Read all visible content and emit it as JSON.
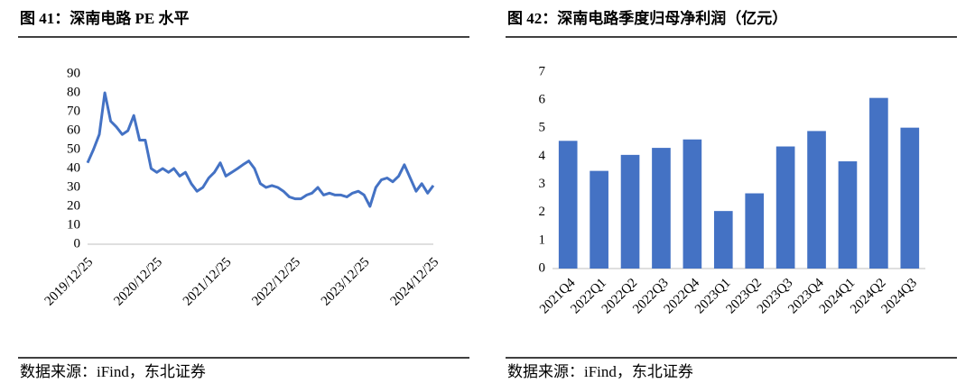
{
  "chart_data": [
    {
      "type": "line",
      "title": "图 41：深南电路 PE 水平",
      "source": "数据来源：iFind，东北证券",
      "color": "#4472c4",
      "x": [
        "2019/12/25",
        "2020/01/25",
        "2020/02/25",
        "2020/03/25",
        "2020/04/25",
        "2020/05/25",
        "2020/06/25",
        "2020/07/25",
        "2020/08/25",
        "2020/09/25",
        "2020/10/25",
        "2020/11/25",
        "2020/12/25",
        "2021/01/25",
        "2021/02/25",
        "2021/03/25",
        "2021/04/25",
        "2021/05/25",
        "2021/06/25",
        "2021/07/25",
        "2021/08/25",
        "2021/09/25",
        "2021/10/25",
        "2021/11/25",
        "2021/12/25",
        "2022/01/25",
        "2022/02/25",
        "2022/03/25",
        "2022/04/25",
        "2022/05/25",
        "2022/06/25",
        "2022/07/25",
        "2022/08/25",
        "2022/09/25",
        "2022/10/25",
        "2022/11/25",
        "2022/12/25",
        "2023/01/25",
        "2023/02/25",
        "2023/03/25",
        "2023/04/25",
        "2023/05/25",
        "2023/06/25",
        "2023/07/25",
        "2023/08/25",
        "2023/09/25",
        "2023/10/25",
        "2023/11/25",
        "2023/12/25",
        "2024/01/25",
        "2024/02/25",
        "2024/03/25",
        "2024/04/25",
        "2024/05/25",
        "2024/06/25",
        "2024/07/25",
        "2024/08/25",
        "2024/09/25",
        "2024/10/25",
        "2024/11/25",
        "2024/12/25"
      ],
      "values": [
        43,
        50,
        58,
        80,
        65,
        62,
        58,
        60,
        68,
        55,
        55,
        40,
        38,
        40,
        38,
        40,
        36,
        38,
        32,
        28,
        30,
        35,
        38,
        43,
        36,
        38,
        40,
        42,
        44,
        40,
        32,
        30,
        31,
        30,
        28,
        25,
        24,
        24,
        26,
        27,
        30,
        26,
        27,
        26,
        26,
        25,
        27,
        28,
        26,
        20,
        30,
        34,
        35,
        33,
        36,
        42,
        35,
        28,
        32,
        27,
        31
      ],
      "xlim": [
        "2019/12/25",
        "2024/12/25"
      ],
      "xticks": [
        "2019/12/25",
        "2020/12/25",
        "2021/12/25",
        "2022/12/25",
        "2023/12/25",
        "2024/12/25"
      ],
      "ylim": [
        0,
        90
      ],
      "yticks": [
        0,
        10,
        20,
        30,
        40,
        50,
        60,
        70,
        80,
        90
      ]
    },
    {
      "type": "bar",
      "title": "图 42：深南电路季度归母净利润（亿元）",
      "source": "数据来源：iFind，东北证券",
      "color": "#4472c4",
      "categories": [
        "2021Q4",
        "2022Q1",
        "2022Q2",
        "2022Q3",
        "2022Q4",
        "2023Q1",
        "2023Q2",
        "2023Q3",
        "2023Q4",
        "2024Q1",
        "2024Q2",
        "2024Q3"
      ],
      "values": [
        4.55,
        3.48,
        4.05,
        4.3,
        4.6,
        2.05,
        2.68,
        4.35,
        4.9,
        3.82,
        6.08,
        5.02
      ],
      "ylim": [
        0,
        7
      ],
      "yticks": [
        0,
        1,
        2,
        3,
        4,
        5,
        6,
        7
      ]
    }
  ]
}
